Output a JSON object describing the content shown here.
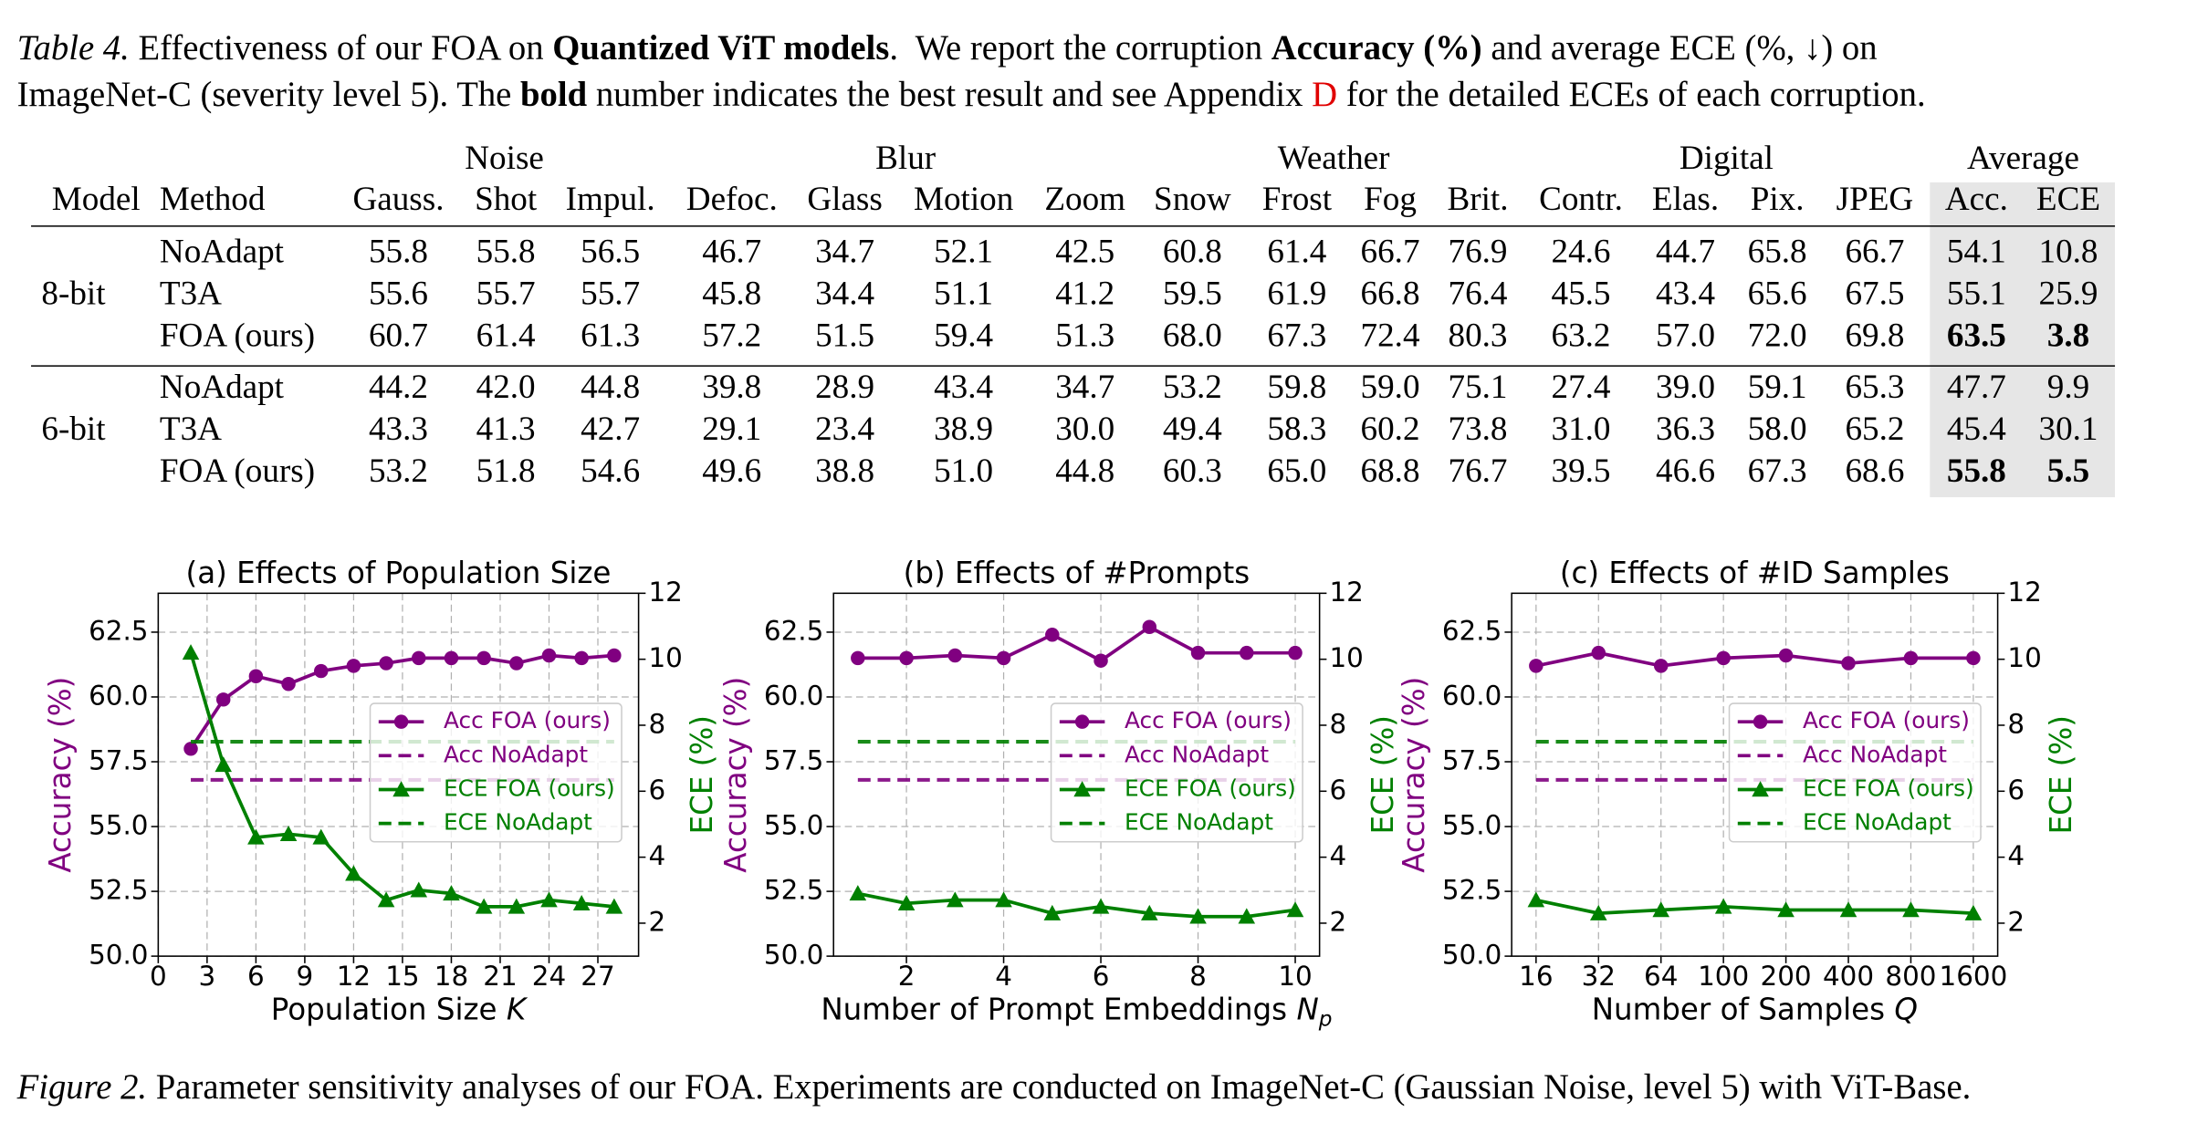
{
  "table_caption": {
    "label": "Table 4.",
    "segments": [
      "Effectiveness of our FOA on ",
      "Quantized ViT models",
      ".  We report the corruption ",
      "Accuracy (%)",
      " and average ECE (%, ↓) on",
      "ImageNet-C (severity level 5). The ",
      "bold",
      " number indicates the best result and see Appendix ",
      "D",
      " for the detailed ECEs of each corruption."
    ]
  },
  "table": {
    "row_header": [
      "Model",
      "Method"
    ],
    "groups": [
      {
        "name": "Noise",
        "columns": [
          "Gauss.",
          "Shot",
          "Impul."
        ]
      },
      {
        "name": "Blur",
        "columns": [
          "Defoc.",
          "Glass",
          "Motion",
          "Zoom"
        ]
      },
      {
        "name": "Weather",
        "columns": [
          "Snow",
          "Frost",
          "Fog",
          "Brit."
        ]
      },
      {
        "name": "Digital",
        "columns": [
          "Contr.",
          "Elas.",
          "Pix.",
          "JPEG"
        ]
      },
      {
        "name": "Average",
        "columns": [
          "Acc.",
          "ECE"
        ]
      }
    ],
    "row_groups": [
      {
        "model": "8-bit",
        "rows": [
          {
            "method": "NoAdapt",
            "values": [
              "55.8",
              "55.8",
              "56.5",
              "46.7",
              "34.7",
              "52.1",
              "42.5",
              "60.8",
              "61.4",
              "66.7",
              "76.9",
              "24.6",
              "44.7",
              "65.8",
              "66.7",
              "54.1",
              "10.8"
            ]
          },
          {
            "method": "T3A",
            "values": [
              "55.6",
              "55.7",
              "55.7",
              "45.8",
              "34.4",
              "51.1",
              "41.2",
              "59.5",
              "61.9",
              "66.8",
              "76.4",
              "45.5",
              "43.4",
              "65.6",
              "67.5",
              "55.1",
              "25.9"
            ]
          },
          {
            "method": "FOA (ours)",
            "values": [
              "60.7",
              "61.4",
              "61.3",
              "57.2",
              "51.5",
              "59.4",
              "51.3",
              "68.0",
              "67.3",
              "72.4",
              "80.3",
              "63.2",
              "57.0",
              "72.0",
              "69.8",
              "63.5",
              "3.8"
            ]
          }
        ]
      },
      {
        "model": "6-bit",
        "rows": [
          {
            "method": "NoAdapt",
            "values": [
              "44.2",
              "42.0",
              "44.8",
              "39.8",
              "28.9",
              "43.4",
              "34.7",
              "53.2",
              "59.8",
              "59.0",
              "75.1",
              "27.4",
              "39.0",
              "59.1",
              "65.3",
              "47.7",
              "9.9"
            ]
          },
          {
            "method": "T3A",
            "values": [
              "43.3",
              "41.3",
              "42.7",
              "29.1",
              "23.4",
              "38.9",
              "30.0",
              "49.4",
              "58.3",
              "60.2",
              "73.8",
              "31.0",
              "36.3",
              "58.0",
              "65.2",
              "45.4",
              "30.1"
            ]
          },
          {
            "method": "FOA (ours)",
            "values": [
              "53.2",
              "51.8",
              "54.6",
              "49.6",
              "38.8",
              "51.0",
              "44.8",
              "60.3",
              "65.0",
              "68.8",
              "76.7",
              "39.5",
              "46.6",
              "67.3",
              "68.6",
              "55.8",
              "5.5"
            ]
          }
        ]
      }
    ]
  },
  "chart_data": [
    {
      "type": "line",
      "title": "(a) Effects of Population Size",
      "xlabel": "Population Size ",
      "xlabel_symbol": "K",
      "ylabel": "Accuracy (%)",
      "y2label": "ECE (%)",
      "x": [
        2,
        4,
        6,
        8,
        10,
        12,
        14,
        16,
        18,
        20,
        22,
        24,
        26,
        28
      ],
      "xlim": [
        0,
        29.5
      ],
      "xticks": [
        0,
        3,
        6,
        9,
        12,
        15,
        18,
        21,
        24,
        27
      ],
      "ylim": [
        50,
        64
      ],
      "yticks": [
        {
          "value": 50,
          "label": "50.0"
        },
        52.5,
        {
          "value": 55,
          "label": "55.0"
        },
        57.5,
        {
          "value": 60,
          "label": "60.0"
        },
        62.5
      ],
      "y2lim": [
        1,
        12
      ],
      "y2ticks": [
        2,
        4,
        6,
        8,
        10,
        12
      ],
      "grid": true,
      "legend": "center right",
      "series": [
        {
          "name": "Acc FOA (ours)",
          "color": "#800080",
          "axis": "y",
          "style": "solid",
          "marker": "circle",
          "values": [
            58.0,
            59.9,
            60.8,
            60.5,
            61.0,
            61.2,
            61.3,
            61.5,
            61.5,
            61.5,
            61.3,
            61.6,
            61.5,
            61.6
          ]
        },
        {
          "name": "Acc NoAdapt",
          "color": "#800080",
          "axis": "y",
          "style": "dashed",
          "values": [
            56.8,
            56.8,
            56.8,
            56.8,
            56.8,
            56.8,
            56.8,
            56.8,
            56.8,
            56.8,
            56.8,
            56.8,
            56.8,
            56.8
          ]
        },
        {
          "name": "ECE FOA (ours)",
          "color": "#008000",
          "axis": "y2",
          "style": "solid",
          "marker": "triangle",
          "values": [
            10.2,
            6.8,
            4.6,
            4.7,
            4.6,
            3.5,
            2.7,
            3.0,
            2.9,
            2.5,
            2.5,
            2.7,
            2.6,
            2.5
          ]
        },
        {
          "name": "ECE NoAdapt",
          "color": "#008000",
          "axis": "y2",
          "style": "dashed",
          "values": [
            7.5,
            7.5,
            7.5,
            7.5,
            7.5,
            7.5,
            7.5,
            7.5,
            7.5,
            7.5,
            7.5,
            7.5,
            7.5,
            7.5
          ]
        }
      ]
    },
    {
      "type": "line",
      "title": "(b) Effects of #Prompts",
      "xlabel": "Number of Prompt Embeddings ",
      "xlabel_symbol": "N",
      "xlabel_subscript": "p",
      "ylabel": "Accuracy (%)",
      "y2label": "ECE (%)",
      "x": [
        1,
        2,
        3,
        4,
        5,
        6,
        7,
        8,
        9,
        10
      ],
      "xlim": [
        0.5,
        10.5
      ],
      "xticks": [
        2,
        4,
        6,
        8,
        10
      ],
      "ylim": [
        50,
        64
      ],
      "yticks": [
        {
          "value": 50,
          "label": "50.0"
        },
        52.5,
        {
          "value": 55,
          "label": "55.0"
        },
        57.5,
        {
          "value": 60,
          "label": "60.0"
        },
        62.5
      ],
      "y2lim": [
        1,
        12
      ],
      "y2ticks": [
        2,
        4,
        6,
        8,
        10,
        12
      ],
      "grid": true,
      "legend": "center right",
      "series": [
        {
          "name": "Acc FOA (ours)",
          "color": "#800080",
          "axis": "y",
          "style": "solid",
          "marker": "circle",
          "values": [
            61.5,
            61.5,
            61.6,
            61.5,
            62.4,
            61.4,
            62.7,
            61.7,
            61.7,
            61.7
          ]
        },
        {
          "name": "Acc NoAdapt",
          "color": "#800080",
          "axis": "y",
          "style": "dashed",
          "values": [
            56.8,
            56.8,
            56.8,
            56.8,
            56.8,
            56.8,
            56.8,
            56.8,
            56.8,
            56.8
          ]
        },
        {
          "name": "ECE FOA (ours)",
          "color": "#008000",
          "axis": "y2",
          "style": "solid",
          "marker": "triangle",
          "values": [
            2.9,
            2.6,
            2.7,
            2.7,
            2.3,
            2.5,
            2.3,
            2.2,
            2.2,
            2.4
          ]
        },
        {
          "name": "ECE NoAdapt",
          "color": "#008000",
          "axis": "y2",
          "style": "dashed",
          "values": [
            7.5,
            7.5,
            7.5,
            7.5,
            7.5,
            7.5,
            7.5,
            7.5,
            7.5,
            7.5
          ]
        }
      ]
    },
    {
      "type": "line",
      "title": "(c) Effects of #ID Samples",
      "xlabel": "Number of Samples ",
      "xlabel_symbol": "Q",
      "ylabel": "Accuracy (%)",
      "y2label": "ECE (%)",
      "categories": [
        "16",
        "32",
        "64",
        "100",
        "200",
        "400",
        "800",
        "1600"
      ],
      "ylim": [
        50,
        64
      ],
      "yticks": [
        {
          "value": 50,
          "label": "50.0"
        },
        52.5,
        {
          "value": 55,
          "label": "55.0"
        },
        57.5,
        {
          "value": 60,
          "label": "60.0"
        },
        62.5
      ],
      "y2lim": [
        1,
        12
      ],
      "y2ticks": [
        2,
        4,
        6,
        8,
        10,
        12
      ],
      "grid": true,
      "legend": "center right",
      "series": [
        {
          "name": "Acc FOA (ours)",
          "color": "#800080",
          "axis": "y",
          "style": "solid",
          "marker": "circle",
          "values": [
            61.2,
            61.7,
            61.2,
            61.5,
            61.6,
            61.3,
            61.5,
            61.5
          ]
        },
        {
          "name": "Acc NoAdapt",
          "color": "#800080",
          "axis": "y",
          "style": "dashed",
          "values": [
            56.8,
            56.8,
            56.8,
            56.8,
            56.8,
            56.8,
            56.8,
            56.8
          ]
        },
        {
          "name": "ECE FOA (ours)",
          "color": "#008000",
          "axis": "y2",
          "style": "solid",
          "marker": "triangle",
          "values": [
            2.7,
            2.3,
            2.4,
            2.5,
            2.4,
            2.4,
            2.4,
            2.3
          ]
        },
        {
          "name": "ECE NoAdapt",
          "color": "#008000",
          "axis": "y2",
          "style": "dashed",
          "values": [
            7.5,
            7.5,
            7.5,
            7.5,
            7.5,
            7.5,
            7.5,
            7.5
          ]
        }
      ]
    }
  ],
  "figure_caption": {
    "label": "Figure 2.",
    "text": " Parameter sensitivity analyses of our FOA. Experiments are conducted on ImageNet-C (Gaussian Noise, level 5) with ViT-Base."
  }
}
